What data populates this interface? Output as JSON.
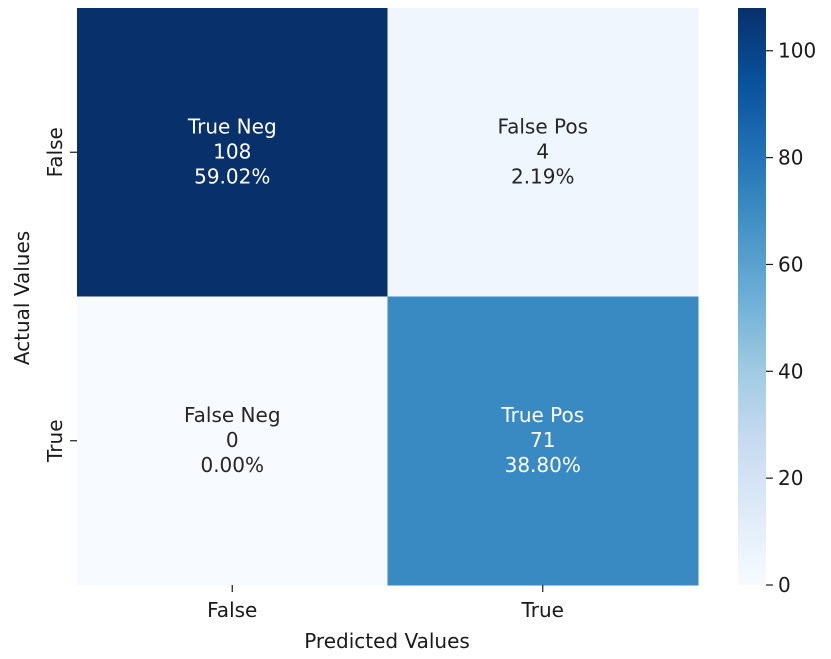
{
  "chart_data": {
    "type": "heatmap",
    "title": "",
    "xlabel": "Predicted Values",
    "ylabel": "Actual Values",
    "x_categories": [
      "False",
      "True"
    ],
    "y_categories": [
      "False",
      "True"
    ],
    "cells": [
      {
        "row": 0,
        "col": 0,
        "name": "True Neg",
        "count_label": "108",
        "percent_label": "59.02%",
        "value": 108
      },
      {
        "row": 0,
        "col": 1,
        "name": "False Pos",
        "count_label": "4",
        "percent_label": "2.19%",
        "value": 4
      },
      {
        "row": 1,
        "col": 0,
        "name": "False Neg",
        "count_label": "0",
        "percent_label": "0.00%",
        "value": 0
      },
      {
        "row": 1,
        "col": 1,
        "name": "True Pos",
        "count_label": "71",
        "percent_label": "38.80%",
        "value": 71
      }
    ],
    "colorbar": {
      "min": 0,
      "max": 108,
      "colormap": "Blues",
      "ticks": [
        0,
        20,
        40,
        60,
        80,
        100
      ],
      "tick_labels": [
        "0",
        "20",
        "40",
        "60",
        "80",
        "100"
      ]
    },
    "grid": false,
    "legend": "colorbar-right"
  }
}
